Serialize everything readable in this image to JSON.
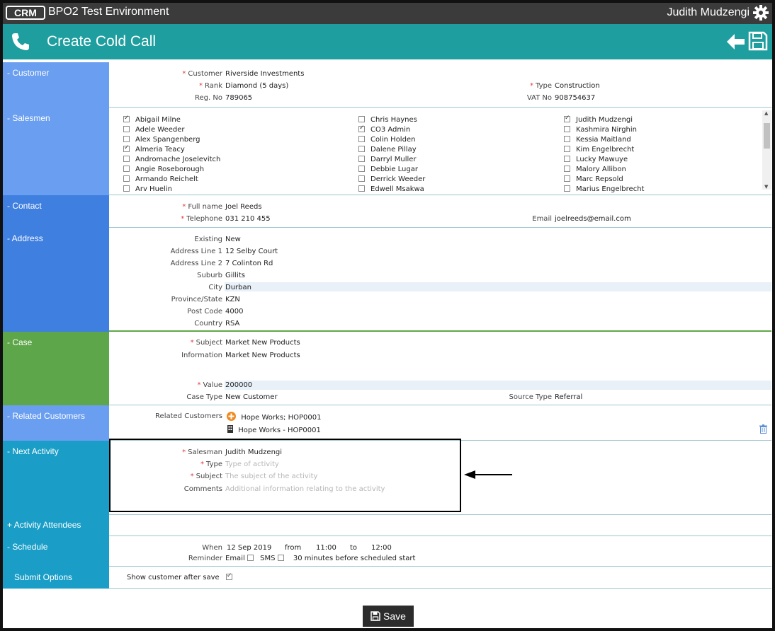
{
  "app": {
    "logo_text": "CRM",
    "env_title": "BPO2 Test Environment",
    "user": "Judith Mudzengi"
  },
  "page": {
    "title": "Create Cold Call"
  },
  "colors": {
    "topbar": "#3b3b3b",
    "teal": "#1e9e9e",
    "side_blue": "#6a9ef0",
    "side_green": "#5ea64a",
    "side_cyan": "#1a9ec7",
    "required": "#e23a3a"
  },
  "sections": {
    "customer": "Customer",
    "salesmen": "Salesmen",
    "contact": "Contact",
    "address": "Address",
    "case": "Case",
    "related": "Related Customers",
    "next_activity": "Next Activity",
    "attendees": "Activity Attendees",
    "schedule": "Schedule",
    "submit": "Submit Options"
  },
  "customer": {
    "customer_label": "Customer",
    "customer_value": "Riverside Investments",
    "rank_label": "Rank",
    "rank_value": "Diamond (5 days)",
    "regno_label": "Reg. No",
    "regno_value": "789065",
    "type_label": "Type",
    "type_value": "Construction",
    "vat_label": "VAT No",
    "vat_value": "908754637"
  },
  "salesmen": [
    [
      {
        "name": "Abigail Milne",
        "checked": true
      },
      {
        "name": "Adele Weeder",
        "checked": false
      },
      {
        "name": "Alex Spangenberg",
        "checked": false
      },
      {
        "name": "Almeria Teacy",
        "checked": true
      },
      {
        "name": "Andromache Joselevitch",
        "checked": false
      },
      {
        "name": "Angie Roseborough",
        "checked": false
      },
      {
        "name": "Armando Reichelt",
        "checked": false
      },
      {
        "name": "Arv Huelin",
        "checked": false
      }
    ],
    [
      {
        "name": "Chris Haynes",
        "checked": false
      },
      {
        "name": "CO3 Admin",
        "checked": true
      },
      {
        "name": "Colin Holden",
        "checked": false
      },
      {
        "name": "Dalene Pillay",
        "checked": false
      },
      {
        "name": "Darryl Muller",
        "checked": false
      },
      {
        "name": "Debbie Lugar",
        "checked": false
      },
      {
        "name": "Derrick Weeder",
        "checked": false
      },
      {
        "name": "Edwell Msakwa",
        "checked": false
      }
    ],
    [
      {
        "name": "Judith Mudzengi",
        "checked": true
      },
      {
        "name": "Kashmira Nirghin",
        "checked": false
      },
      {
        "name": "Kessia Maitland",
        "checked": false
      },
      {
        "name": "Kim Engelbrecht",
        "checked": false
      },
      {
        "name": "Lucky Mawuye",
        "checked": false
      },
      {
        "name": "Malory Allibon",
        "checked": false
      },
      {
        "name": "Marc Repsold",
        "checked": false
      },
      {
        "name": "Marius Engelbrecht",
        "checked": false
      }
    ]
  ],
  "contact": {
    "fullname_label": "Full name",
    "fullname_value": "Joel Reeds",
    "tel_label": "Telephone",
    "tel_value": "031 210 455",
    "email_label": "Email",
    "email_value": "joelreeds@email.com"
  },
  "address": {
    "existing_label": "Existing",
    "existing_value": "New",
    "line1_label": "Address Line 1",
    "line1_value": "12 Selby Court",
    "line2_label": "Address Line 2",
    "line2_value": "7 Colinton Rd",
    "suburb_label": "Suburb",
    "suburb_value": "Gillits",
    "city_label": "City",
    "city_value": "Durban",
    "province_label": "Province/State",
    "province_value": "KZN",
    "postcode_label": "Post Code",
    "postcode_value": "4000",
    "country_label": "Country",
    "country_value": "RSA"
  },
  "case": {
    "subject_label": "Subject",
    "subject_value": "Market New Products",
    "info_label": "Information",
    "info_value": "Market New Products",
    "value_label": "Value",
    "value_value": "200000",
    "casetype_label": "Case Type",
    "casetype_value": "New Customer",
    "source_label": "Source Type",
    "source_value": "Referral"
  },
  "related": {
    "label": "Related Customers",
    "add_value": "Hope Works; HOP0001",
    "item": "Hope Works - HOP0001"
  },
  "next_activity": {
    "salesman_label": "Salesman",
    "salesman_value": "Judith Mudzengi",
    "type_label": "Type",
    "type_placeholder": "Type of activity",
    "subject_label": "Subject",
    "subject_placeholder": "The subject of the activity",
    "comments_label": "Comments",
    "comments_placeholder": "Additional information relating to the activity"
  },
  "schedule": {
    "when_label": "When",
    "date": "12 Sep 2019",
    "from_label": "from",
    "from_time": "11:00",
    "to_label": "to",
    "to_time": "12:00",
    "reminder_label": "Reminder",
    "email_label": "Email",
    "sms_label": "SMS",
    "minutes_value": "30",
    "minutes_label": "minutes",
    "before_label": "before scheduled start"
  },
  "submit": {
    "show_customer_label": "Show customer after save",
    "show_customer_checked": true
  },
  "footer": {
    "save_label": "Save"
  }
}
